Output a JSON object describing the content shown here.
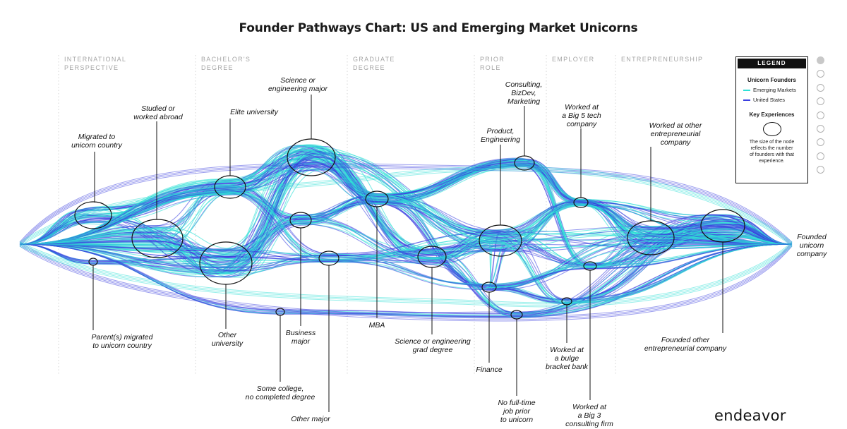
{
  "title": "Founder Pathways Chart: US and Emerging Market Unicorns",
  "stages": [
    {
      "label": "INTERNATIONAL\nPERSPECTIVE"
    },
    {
      "label": "BACHELOR'S\nDEGREE"
    },
    {
      "label": "GRADUATE\nDEGREE"
    },
    {
      "label": "PRIOR\nROLE"
    },
    {
      "label": "EMPLOYER"
    },
    {
      "label": "ENTREPRENEURSHIP"
    }
  ],
  "nodes": [
    {
      "id": "start",
      "label": ""
    },
    {
      "id": "migrated",
      "label": "Migrated to\nunicorn country"
    },
    {
      "id": "parents",
      "label": "Parent(s) migrated\nto unicorn country"
    },
    {
      "id": "abroad",
      "label": "Studied or\nworked abroad"
    },
    {
      "id": "elite",
      "label": "Elite university"
    },
    {
      "id": "other_uni",
      "label": "Other\nuniversity"
    },
    {
      "id": "some_college",
      "label": "Some college,\nno completed degree"
    },
    {
      "id": "sci_major",
      "label": "Science or\nengineering major"
    },
    {
      "id": "business",
      "label": "Business\nmajor"
    },
    {
      "id": "other_major",
      "label": "Other major"
    },
    {
      "id": "mba",
      "label": "MBA"
    },
    {
      "id": "sci_grad",
      "label": "Science or engineering\ngrad degree"
    },
    {
      "id": "consulting",
      "label": "Consulting,\nBizDev,\nMarketing"
    },
    {
      "id": "product",
      "label": "Product,\nEngineering"
    },
    {
      "id": "finance",
      "label": "Finance"
    },
    {
      "id": "no_job",
      "label": "No full-time\njob prior\nto unicorn"
    },
    {
      "id": "big5",
      "label": "Worked at\na Big 5 tech\ncompany"
    },
    {
      "id": "big3",
      "label": "Worked at\na Big 3\nconsulting firm"
    },
    {
      "id": "bulge",
      "label": "Worked at\na bulge\nbracket bank"
    },
    {
      "id": "other_entre",
      "label": "Worked at other\nentrepreneurial\ncompany"
    },
    {
      "id": "founded_other",
      "label": "Founded other\nentrepreneurial company"
    },
    {
      "id": "founded_unicorn",
      "label": "Founded\nunicorn\ncompany"
    }
  ],
  "legend": {
    "heading": "LEGEND",
    "founders_title": "Unicorn Founders",
    "series": [
      {
        "name": "Emerging Markets",
        "color": "#2ee0d6"
      },
      {
        "name": "United States",
        "color": "#3b3fe0"
      }
    ],
    "key_title": "Key Experiences",
    "note": "The size of the node\nreflects the number\nof founders with that\nexperience."
  },
  "pager": {
    "count": 9,
    "active": 0
  },
  "brand": "endeavor",
  "colors": {
    "emerging": "#2ee0d6",
    "us": "#3b3fe0",
    "node": "#111111"
  }
}
